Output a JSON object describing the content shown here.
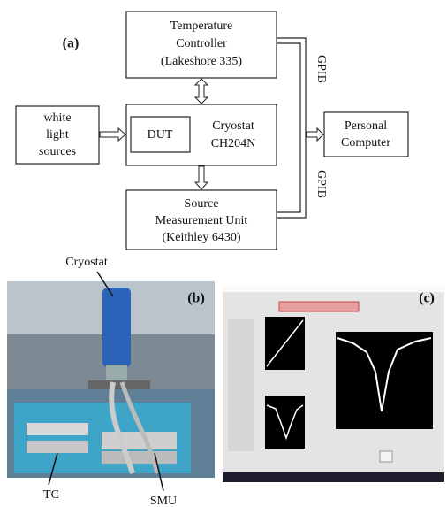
{
  "panel_a": {
    "label": "(a)",
    "temperature_controller": [
      "Temperature",
      "Controller",
      "(Lakeshore 335)"
    ],
    "light_source": [
      "white",
      "light",
      "sources"
    ],
    "dut": "DUT",
    "cryostat": [
      "Cryostat",
      "CH204N"
    ],
    "smu": [
      "Source",
      "Measurement Unit",
      "(Keithley 6430)"
    ],
    "computer": [
      "Personal",
      "Computer"
    ],
    "bus_labels": [
      "GPIB",
      "GPIB"
    ]
  },
  "panel_b": {
    "label": "(b)",
    "callouts": [
      "Cryostat",
      "TC",
      "SMU"
    ]
  },
  "panel_c": {
    "label": "(c)"
  }
}
